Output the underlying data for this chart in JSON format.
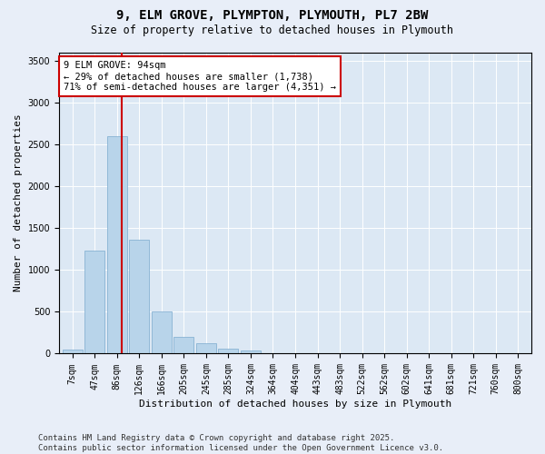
{
  "title_line1": "9, ELM GROVE, PLYMPTON, PLYMOUTH, PL7 2BW",
  "title_line2": "Size of property relative to detached houses in Plymouth",
  "xlabel": "Distribution of detached houses by size in Plymouth",
  "ylabel": "Number of detached properties",
  "categories": [
    "7sqm",
    "47sqm",
    "86sqm",
    "126sqm",
    "166sqm",
    "205sqm",
    "245sqm",
    "285sqm",
    "324sqm",
    "364sqm",
    "404sqm",
    "443sqm",
    "483sqm",
    "522sqm",
    "562sqm",
    "602sqm",
    "641sqm",
    "681sqm",
    "721sqm",
    "760sqm",
    "800sqm"
  ],
  "values": [
    50,
    1230,
    2600,
    1360,
    500,
    200,
    120,
    55,
    40,
    10,
    5,
    3,
    2,
    0,
    0,
    0,
    0,
    0,
    0,
    0,
    0
  ],
  "bar_color": "#b8d4ea",
  "bar_edge_color": "#7aaace",
  "vline_color": "#cc0000",
  "vline_pos": 2.22,
  "annotation_text_line1": "9 ELM GROVE: 94sqm",
  "annotation_text_line2": "← 29% of detached houses are smaller (1,738)",
  "annotation_text_line3": "71% of semi-detached houses are larger (4,351) →",
  "annotation_fontsize": 7.5,
  "ylim": [
    0,
    3600
  ],
  "yticks": [
    0,
    500,
    1000,
    1500,
    2000,
    2500,
    3000,
    3500
  ],
  "bg_color": "#e8eef8",
  "plot_bg_color": "#dce8f4",
  "footer_line1": "Contains HM Land Registry data © Crown copyright and database right 2025.",
  "footer_line2": "Contains public sector information licensed under the Open Government Licence v3.0.",
  "title_fontsize": 10,
  "subtitle_fontsize": 8.5,
  "axis_label_fontsize": 8,
  "tick_fontsize": 7,
  "footer_fontsize": 6.5
}
